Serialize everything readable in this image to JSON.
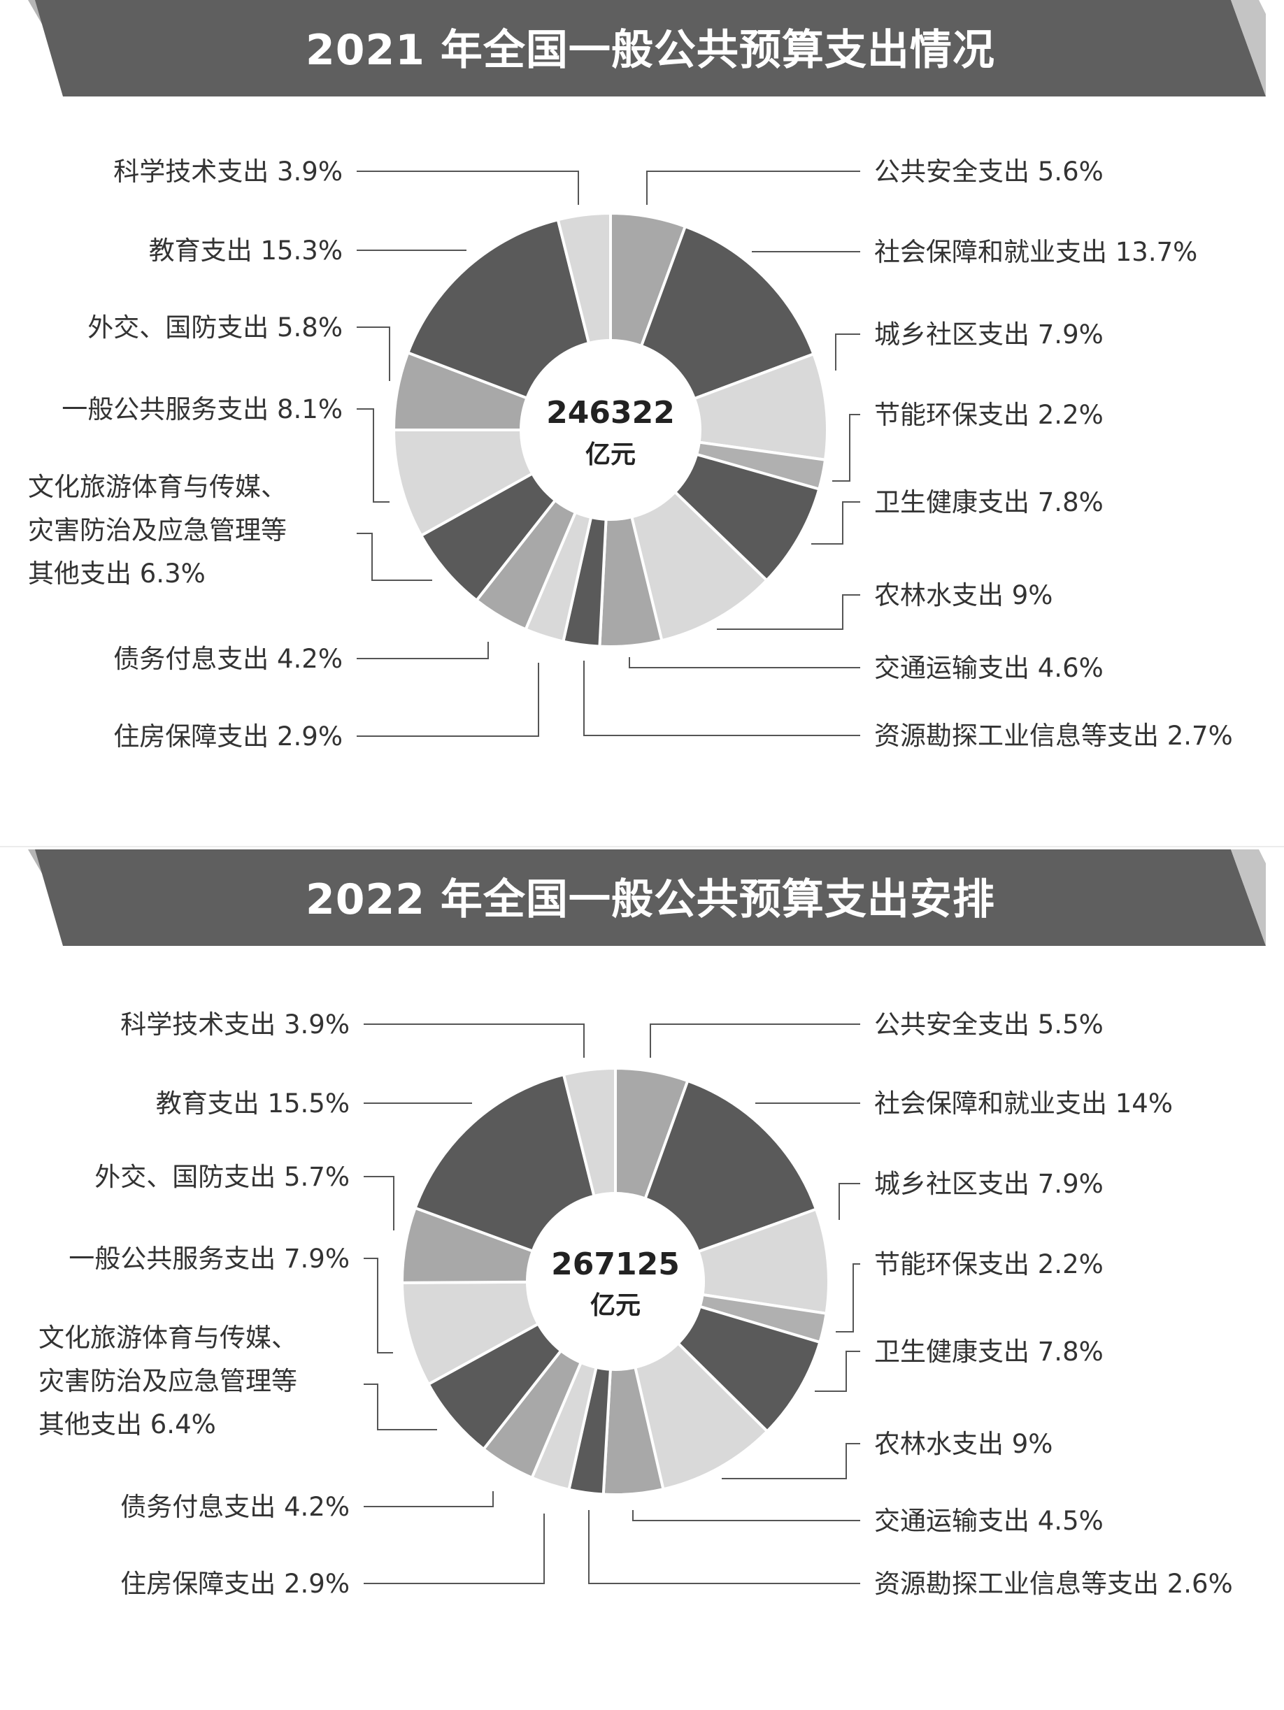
{
  "chart_data": [
    {
      "type": "pie",
      "title": "2021 年全国一般公共预算支出情况",
      "center_total": "246322",
      "center_unit": "亿元",
      "slices": [
        {
          "label": "公共安全支出 5.6%",
          "value": 5.6,
          "color": "#a8a8a8"
        },
        {
          "label": "社会保障和就业支出 13.7%",
          "value": 13.7,
          "color": "#5a5a5a"
        },
        {
          "label": "城乡社区支出 7.9%",
          "value": 7.9,
          "color": "#d9d9d9"
        },
        {
          "label": "节能环保支出 2.2%",
          "value": 2.2,
          "color": "#b0b0b0"
        },
        {
          "label": "卫生健康支出 7.8%",
          "value": 7.8,
          "color": "#5a5a5a"
        },
        {
          "label": "农林水支出 9%",
          "value": 9,
          "color": "#d9d9d9"
        },
        {
          "label": "交通运输支出 4.6%",
          "value": 4.6,
          "color": "#a8a8a8"
        },
        {
          "label": "资源勘探工业信息等支出 2.7%",
          "value": 2.7,
          "color": "#5a5a5a"
        },
        {
          "label": "住房保障支出 2.9%",
          "value": 2.9,
          "color": "#d9d9d9"
        },
        {
          "label": "债务付息支出 4.2%",
          "value": 4.2,
          "color": "#a8a8a8"
        },
        {
          "label": "文化旅游体育与传媒、灾害防治及应急管理等其他支出 6.3%",
          "value": 6.3,
          "color": "#5a5a5a"
        },
        {
          "label": "一般公共服务支出 8.1%",
          "value": 8.1,
          "color": "#d9d9d9"
        },
        {
          "label": "外交、国防支出 5.8%",
          "value": 5.8,
          "color": "#a8a8a8"
        },
        {
          "label": "教育支出 15.3%",
          "value": 15.3,
          "color": "#5a5a5a"
        },
        {
          "label": "科学技术支出 3.9%",
          "value": 3.9,
          "color": "#d9d9d9"
        }
      ]
    },
    {
      "type": "pie",
      "title": "2022 年全国一般公共预算支出安排",
      "center_total": "267125",
      "center_unit": "亿元",
      "slices": [
        {
          "label": "公共安全支出 5.5%",
          "value": 5.5,
          "color": "#a8a8a8"
        },
        {
          "label": "社会保障和就业支出 14%",
          "value": 14,
          "color": "#5a5a5a"
        },
        {
          "label": "城乡社区支出 7.9%",
          "value": 7.9,
          "color": "#d9d9d9"
        },
        {
          "label": "节能环保支出 2.2%",
          "value": 2.2,
          "color": "#b0b0b0"
        },
        {
          "label": "卫生健康支出 7.8%",
          "value": 7.8,
          "color": "#5a5a5a"
        },
        {
          "label": "农林水支出 9%",
          "value": 9,
          "color": "#d9d9d9"
        },
        {
          "label": "交通运输支出 4.5%",
          "value": 4.5,
          "color": "#a8a8a8"
        },
        {
          "label": "资源勘探工业信息等支出 2.6%",
          "value": 2.6,
          "color": "#5a5a5a"
        },
        {
          "label": "住房保障支出 2.9%",
          "value": 2.9,
          "color": "#d9d9d9"
        },
        {
          "label": "债务付息支出 4.2%",
          "value": 4.2,
          "color": "#a8a8a8"
        },
        {
          "label": "文化旅游体育与传媒、灾害防治及应急管理等其他支出 6.4%",
          "value": 6.4,
          "color": "#5a5a5a"
        },
        {
          "label": "一般公共服务支出 7.9%",
          "value": 7.9,
          "color": "#d9d9d9"
        },
        {
          "label": "外交、国防支出 5.7%",
          "value": 5.7,
          "color": "#a8a8a8"
        },
        {
          "label": "教育支出 15.5%",
          "value": 15.5,
          "color": "#5a5a5a"
        },
        {
          "label": "科学技术支出 3.9%",
          "value": 3.9,
          "color": "#d9d9d9"
        }
      ]
    }
  ]
}
